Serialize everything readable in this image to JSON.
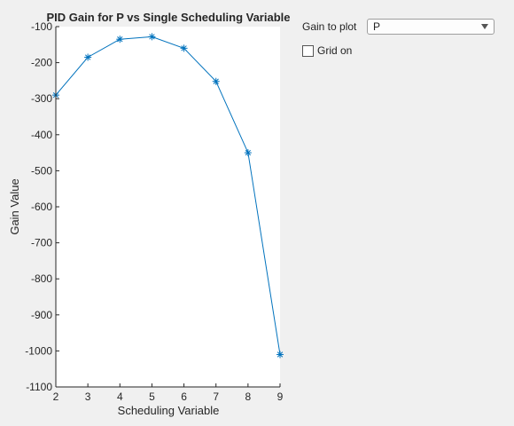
{
  "controls": {
    "gain_label": "Gain to plot",
    "gain_selected": "P",
    "grid_label": "Grid on",
    "grid_checked": false
  },
  "chart_data": {
    "type": "line",
    "title": "PID Gain for P vs Single Scheduling Variable",
    "xlabel": "Scheduling Variable",
    "ylabel": "Gain Value",
    "x": [
      2,
      3,
      4,
      5,
      6,
      7,
      8,
      9
    ],
    "series": [
      {
        "values": [
          -290,
          -185,
          -135,
          -128,
          -160,
          -252,
          -450,
          -1010
        ]
      }
    ],
    "xlim": [
      2,
      9
    ],
    "ylim": [
      -1100,
      -100
    ],
    "xticks": [
      2,
      3,
      4,
      5,
      6,
      7,
      8,
      9
    ],
    "yticks": [
      -100,
      -200,
      -300,
      -400,
      -500,
      -600,
      -700,
      -800,
      -900,
      -1000,
      -1100
    ],
    "marker": "asterisk",
    "line_color": "#0072bd",
    "grid": false
  }
}
